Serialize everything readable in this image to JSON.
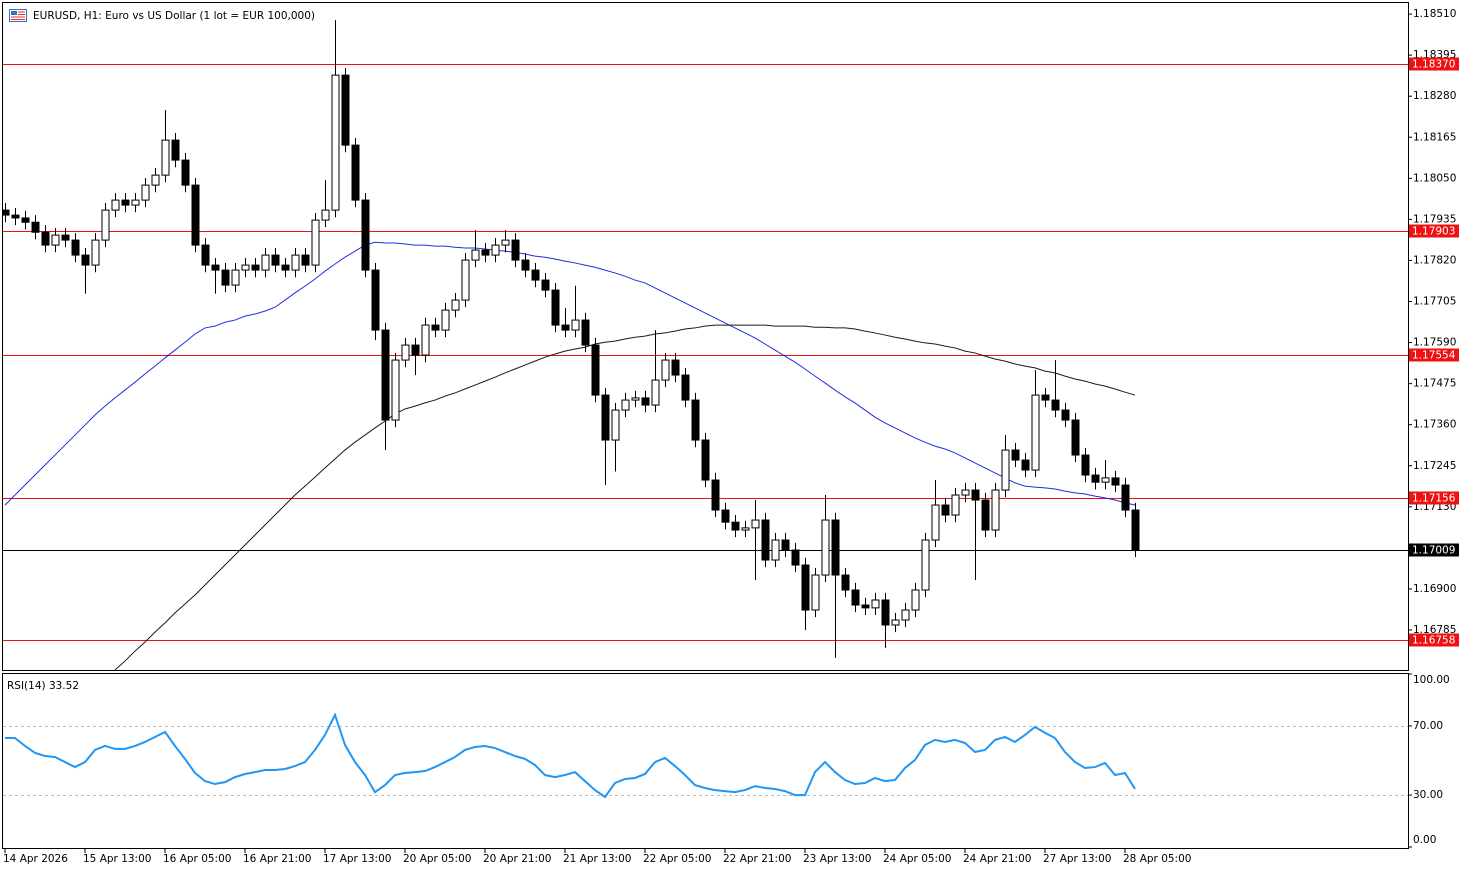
{
  "chart_data": [
    {
      "type": "candlestick",
      "title": "EURUSD, H1:  Euro vs US Dollar (1 lot = EUR 100,000)",
      "categories": [
        "14 Apr 2026",
        null,
        null,
        null,
        null,
        null,
        null,
        null,
        "15 Apr 13:00",
        null,
        null,
        null,
        null,
        null,
        null,
        null,
        "16 Apr 05:00",
        null,
        null,
        null,
        null,
        null,
        null,
        null,
        "16 Apr 21:00",
        null,
        null,
        null,
        null,
        null,
        null,
        null,
        "17 Apr 13:00",
        null,
        null,
        null,
        null,
        null,
        null,
        null,
        "20 Apr 05:00",
        null,
        null,
        null,
        null,
        null,
        null,
        null,
        "20 Apr 21:00",
        null,
        null,
        null,
        null,
        null,
        null,
        null,
        "21 Apr 13:00",
        null,
        null,
        null,
        null,
        null,
        null,
        null,
        "22 Apr 05:00",
        null,
        null,
        null,
        null,
        null,
        null,
        null,
        "22 Apr 21:00",
        null,
        null,
        null,
        null,
        null,
        null,
        null,
        "23 Apr 13:00",
        null,
        null,
        null,
        null,
        null,
        null,
        null,
        "24 Apr 05:00",
        null,
        null,
        null,
        null,
        null,
        null,
        null,
        "24 Apr 21:00",
        null,
        null,
        null,
        null,
        null,
        null,
        null,
        "27 Apr 13:00",
        null,
        null,
        null,
        null,
        null,
        null,
        null,
        "28 Apr 05:00",
        null
      ],
      "open": [
        1.17961,
        1.17947,
        1.17939,
        1.17927,
        1.17899,
        1.17863,
        1.17891,
        1.17877,
        1.17835,
        1.17807,
        1.17877,
        1.17961,
        1.17989,
        1.17975,
        1.17989,
        1.18031,
        1.18059,
        1.18157,
        1.18101,
        1.18031,
        1.17863,
        1.17807,
        1.17793,
        1.17751,
        1.17793,
        1.17807,
        1.17793,
        1.17835,
        1.17807,
        1.17793,
        1.17835,
        1.17807,
        1.17933,
        1.17961,
        1.18339,
        1.18143,
        1.17989,
        1.17793,
        1.17625,
        1.17373,
        1.17541,
        1.17583,
        1.17555,
        1.17639,
        1.17625,
        1.17681,
        1.17709,
        1.17821,
        1.17849,
        1.17835,
        1.17863,
        1.17877,
        1.17821,
        1.17793,
        1.17765,
        1.17737,
        1.17639,
        1.17625,
        1.17653,
        1.17583,
        1.17443,
        1.17317,
        1.17401,
        1.17429,
        1.17435,
        1.17415,
        1.17485,
        1.17541,
        1.17499,
        1.17429,
        1.17317,
        1.17205,
        1.17121,
        1.17087,
        1.17065,
        1.17071,
        1.17093,
        1.16981,
        1.17037,
        1.17009,
        1.16967,
        1.16841,
        1.16939,
        1.17093,
        1.16939,
        1.16897,
        1.16855,
        1.16847,
        1.16869,
        1.16799,
        1.16813,
        1.16841,
        1.16897,
        1.17037,
        1.17135,
        1.17107,
        1.17163,
        1.17177,
        1.17149,
        1.17065,
        1.17177,
        1.17289,
        1.17261,
        1.17233,
        1.17443,
        1.17429,
        1.17401,
        1.17373,
        1.17275,
        1.17219,
        1.17199,
        1.17211,
        1.17191,
        1.17121
      ],
      "high": [
        1.17981,
        1.17967,
        1.17959,
        1.17947,
        1.17919,
        1.17911,
        1.17911,
        1.17897,
        1.17855,
        1.17897,
        1.17981,
        1.18009,
        1.18009,
        1.18009,
        1.18051,
        1.18079,
        1.18241,
        1.18177,
        1.18121,
        1.18051,
        1.17883,
        1.17827,
        1.17813,
        1.17813,
        1.17827,
        1.17827,
        1.17855,
        1.17855,
        1.17827,
        1.17855,
        1.17855,
        1.17953,
        1.18045,
        1.18493,
        1.18359,
        1.18163,
        1.18009,
        1.17813,
        1.17645,
        1.17561,
        1.17603,
        1.17603,
        1.17659,
        1.17659,
        1.17701,
        1.17729,
        1.17841,
        1.17905,
        1.17869,
        1.17883,
        1.17905,
        1.17897,
        1.17841,
        1.17813,
        1.17785,
        1.17757,
        1.17687,
        1.17749,
        1.17673,
        1.17603,
        1.17463,
        1.17421,
        1.17449,
        1.17455,
        1.17455,
        1.17625,
        1.17561,
        1.17561,
        1.17519,
        1.17449,
        1.17337,
        1.17225,
        1.17141,
        1.17107,
        1.17091,
        1.17149,
        1.17113,
        1.17057,
        1.17057,
        1.17029,
        1.16987,
        1.16959,
        1.17163,
        1.17113,
        1.16959,
        1.16917,
        1.16875,
        1.16889,
        1.16889,
        1.16833,
        1.16861,
        1.16917,
        1.17057,
        1.17205,
        1.17155,
        1.17183,
        1.17197,
        1.17197,
        1.17169,
        1.17197,
        1.17331,
        1.17309,
        1.17281,
        1.17513,
        1.17463,
        1.17541,
        1.17421,
        1.17393,
        1.17295,
        1.17239,
        1.17261,
        1.17231,
        1.17211,
        1.17141
      ],
      "low": [
        1.17927,
        1.17919,
        1.17907,
        1.17879,
        1.17843,
        1.17843,
        1.17857,
        1.17815,
        1.17727,
        1.17787,
        1.17857,
        1.17941,
        1.17955,
        1.17955,
        1.17969,
        1.18011,
        1.18039,
        1.18081,
        1.18011,
        1.17843,
        1.17787,
        1.17727,
        1.17731,
        1.17731,
        1.17773,
        1.17773,
        1.17773,
        1.17787,
        1.17773,
        1.17773,
        1.17787,
        1.17787,
        1.17913,
        1.17941,
        1.18123,
        1.17969,
        1.17773,
        1.17597,
        1.17289,
        1.17353,
        1.17521,
        1.17499,
        1.17535,
        1.17605,
        1.17605,
        1.17661,
        1.17689,
        1.17801,
        1.17815,
        1.17815,
        1.17843,
        1.17801,
        1.17773,
        1.17745,
        1.17717,
        1.17619,
        1.17605,
        1.17605,
        1.17563,
        1.17423,
        1.17191,
        1.17229,
        1.17381,
        1.17409,
        1.17395,
        1.17395,
        1.17465,
        1.17479,
        1.17409,
        1.17297,
        1.17185,
        1.17101,
        1.17067,
        1.17045,
        1.17045,
        1.16925,
        1.16961,
        1.16961,
        1.16989,
        1.16947,
        1.16785,
        1.16821,
        1.16919,
        1.16707,
        1.16877,
        1.16835,
        1.16827,
        1.16827,
        1.16735,
        1.16779,
        1.16793,
        1.16821,
        1.16877,
        1.17017,
        1.17087,
        1.17087,
        1.17143,
        1.16925,
        1.17045,
        1.17045,
        1.17157,
        1.17241,
        1.17213,
        1.17213,
        1.17409,
        1.17381,
        1.17353,
        1.17255,
        1.17199,
        1.17179,
        1.17179,
        1.17171,
        1.17101,
        1.16989
      ],
      "close": [
        1.17947,
        1.17939,
        1.17927,
        1.17899,
        1.17863,
        1.17891,
        1.17877,
        1.17835,
        1.17807,
        1.17877,
        1.17961,
        1.17989,
        1.17975,
        1.17989,
        1.18031,
        1.18059,
        1.18157,
        1.18101,
        1.18031,
        1.17863,
        1.17807,
        1.17793,
        1.17751,
        1.17793,
        1.17807,
        1.17793,
        1.17835,
        1.17807,
        1.17793,
        1.17835,
        1.17807,
        1.17933,
        1.17961,
        1.18339,
        1.18143,
        1.17989,
        1.17793,
        1.17625,
        1.17373,
        1.17541,
        1.17583,
        1.17555,
        1.17639,
        1.17625,
        1.17681,
        1.17709,
        1.17821,
        1.17849,
        1.17835,
        1.17863,
        1.17877,
        1.17821,
        1.17793,
        1.17765,
        1.17737,
        1.17639,
        1.17625,
        1.17653,
        1.17583,
        1.17443,
        1.17317,
        1.17401,
        1.17429,
        1.17435,
        1.17415,
        1.17485,
        1.17541,
        1.17499,
        1.17429,
        1.17317,
        1.17205,
        1.17121,
        1.17087,
        1.17065,
        1.17071,
        1.17093,
        1.16981,
        1.17037,
        1.17009,
        1.16967,
        1.16841,
        1.16939,
        1.17093,
        1.16939,
        1.16897,
        1.16855,
        1.16847,
        1.16869,
        1.16799,
        1.16813,
        1.16841,
        1.16897,
        1.17037,
        1.17135,
        1.17107,
        1.17163,
        1.17177,
        1.17149,
        1.17065,
        1.17177,
        1.17289,
        1.17261,
        1.17233,
        1.17443,
        1.17429,
        1.17401,
        1.17373,
        1.17275,
        1.17219,
        1.17199,
        1.17211,
        1.17191,
        1.17121,
        1.17009
      ],
      "candle_color": "#000000",
      "bull_fill": "#ffffff",
      "bear_fill": "#000000",
      "series": [
        {
          "color": "#1f2ee0",
          "values": [
            1.17135,
            1.17163,
            1.17191,
            1.17219,
            1.17247,
            1.17275,
            1.17303,
            1.17331,
            1.17359,
            1.17387,
            1.17412,
            1.17435,
            1.17457,
            1.17479,
            1.17502,
            1.17524,
            1.17547,
            1.17569,
            1.17591,
            1.17614,
            1.17631,
            1.17636,
            1.17647,
            1.17653,
            1.17664,
            1.1767,
            1.17678,
            1.17689,
            1.17709,
            1.17729,
            1.17748,
            1.17768,
            1.1779,
            1.1781,
            1.17829,
            1.17846,
            1.17863,
            1.17871,
            1.17869,
            1.17869,
            1.17866,
            1.17863,
            1.17863,
            1.1786,
            1.1786,
            1.17857,
            1.17855,
            1.17855,
            1.17852,
            1.17849,
            1.17846,
            1.17843,
            1.17838,
            1.17832,
            1.17829,
            1.17824,
            1.17818,
            1.17813,
            1.17807,
            1.17801,
            1.17793,
            1.17785,
            1.17776,
            1.17765,
            1.17757,
            1.17743,
            1.17729,
            1.17715,
            1.17701,
            1.17687,
            1.17673,
            1.17659,
            1.17645,
            1.17631,
            1.17617,
            1.17603,
            1.17586,
            1.17569,
            1.17552,
            1.17535,
            1.17516,
            1.17496,
            1.17477,
            1.17457,
            1.17438,
            1.17421,
            1.17401,
            1.17381,
            1.17365,
            1.17351,
            1.17337,
            1.17323,
            1.17311,
            1.173,
            1.17292,
            1.17281,
            1.17267,
            1.17253,
            1.17239,
            1.17225,
            1.17211,
            1.17197,
            1.17188,
            1.17185,
            1.17183,
            1.1718,
            1.17174,
            1.17169,
            1.17166,
            1.1716,
            1.17155,
            1.17149,
            1.17141,
            1.17135
          ]
        },
        {
          "color": "#1a1a1a",
          "values": [
            null,
            null,
            null,
            null,
            null,
            null,
            null,
            null,
            null,
            null,
            null,
            1.16673,
            1.16698,
            1.16726,
            1.16751,
            1.16779,
            1.16805,
            1.16833,
            1.16858,
            1.16883,
            1.16911,
            1.16939,
            1.16967,
            1.16995,
            1.17023,
            1.17051,
            1.17079,
            1.17107,
            1.17135,
            1.17163,
            1.17188,
            1.17213,
            1.17239,
            1.17264,
            1.17289,
            1.17311,
            1.17331,
            1.17351,
            1.1737,
            1.1739,
            1.17404,
            1.17412,
            1.17421,
            1.17429,
            1.1744,
            1.17449,
            1.1746,
            1.17471,
            1.17482,
            1.17493,
            1.17505,
            1.17516,
            1.17527,
            1.17538,
            1.17549,
            1.17558,
            1.17566,
            1.17572,
            1.17577,
            1.17586,
            1.17591,
            1.17594,
            1.176,
            1.17605,
            1.17608,
            1.17614,
            1.17617,
            1.17622,
            1.17628,
            1.17631,
            1.17636,
            1.17639,
            1.17639,
            1.17639,
            1.17639,
            1.17639,
            1.17639,
            1.17636,
            1.17636,
            1.17636,
            1.17636,
            1.17633,
            1.17633,
            1.17631,
            1.17631,
            1.17628,
            1.17622,
            1.17617,
            1.17611,
            1.17605,
            1.176,
            1.17594,
            1.17589,
            1.17586,
            1.1758,
            1.17575,
            1.17566,
            1.17561,
            1.17552,
            1.17544,
            1.17538,
            1.1753,
            1.17524,
            1.17519,
            1.1751,
            1.17505,
            1.17496,
            1.17488,
            1.17482,
            1.17474,
            1.17468,
            1.1746,
            1.17451,
            1.17443
          ]
        }
      ],
      "levels": [
        {
          "value": 1.1837,
          "label": "1.18370"
        },
        1.17903,
        1.17554,
        1.17156,
        1.16758
      ],
      "level_color": "#ee1111",
      "last_price": 1.17009,
      "last_color": "#000000",
      "ylim": [
        1.16673,
        1.18541
      ],
      "yticks": [
        {
          "value": 1.1851,
          "label": "1.18510"
        },
        1.18395,
        {
          "value": 1.1828,
          "label": "1.18280"
        },
        1.18165,
        {
          "value": 1.1805,
          "label": "1.18050"
        },
        1.17935,
        {
          "value": 1.1782,
          "label": "1.17820"
        },
        1.17705,
        {
          "value": 1.1759,
          "label": "1.17590"
        },
        1.17475,
        {
          "value": 1.1736,
          "label": "1.17360"
        },
        1.17245,
        {
          "value": 1.1713,
          "label": "1.17130"
        },
        {
          "value": 1.169,
          "label": "1.16900"
        },
        1.16785
      ]
    },
    {
      "type": "line",
      "title": "RSI(14) 33.52",
      "color": "#2196f3",
      "values": [
        63.0,
        63.0,
        58.4,
        54.4,
        52.6,
        52.0,
        49.1,
        46.2,
        49.1,
        56.1,
        58.4,
        56.7,
        56.7,
        58.4,
        60.7,
        63.6,
        66.5,
        58.4,
        50.9,
        42.8,
        38.1,
        36.4,
        37.5,
        40.4,
        42.2,
        43.3,
        44.5,
        44.5,
        45.1,
        46.8,
        49.1,
        56.1,
        64.8,
        76.4,
        59.0,
        49.1,
        41.6,
        31.7,
        35.8,
        41.6,
        42.8,
        43.3,
        43.9,
        46.2,
        49.1,
        52.0,
        56.1,
        57.8,
        58.4,
        57.2,
        54.9,
        52.6,
        50.9,
        47.4,
        41.6,
        40.4,
        41.6,
        43.3,
        38.1,
        32.9,
        28.9,
        37.0,
        39.3,
        39.9,
        42.2,
        49.1,
        51.5,
        46.8,
        41.6,
        35.8,
        34.1,
        32.9,
        32.3,
        31.7,
        32.9,
        35.2,
        34.1,
        33.5,
        32.3,
        30.0,
        30.0,
        43.3,
        49.1,
        43.3,
        38.7,
        36.4,
        37.0,
        39.9,
        38.1,
        38.7,
        45.7,
        50.3,
        59.0,
        61.9,
        60.7,
        61.9,
        60.1,
        54.9,
        56.1,
        61.9,
        63.6,
        60.7,
        64.8,
        69.4,
        66.0,
        63.0,
        54.9,
        49.1,
        45.7,
        46.2,
        48.6,
        41.6,
        42.8,
        33.52
      ],
      "levels": [
        70,
        30
      ],
      "ylim": [
        0,
        100
      ],
      "yticks": [
        {
          "value": 100,
          "label": "100.00"
        },
        {
          "value": 70,
          "label": "70.00"
        },
        {
          "value": 30,
          "label": "30.00"
        },
        {
          "value": 0,
          "label": "0.00"
        }
      ]
    }
  ]
}
